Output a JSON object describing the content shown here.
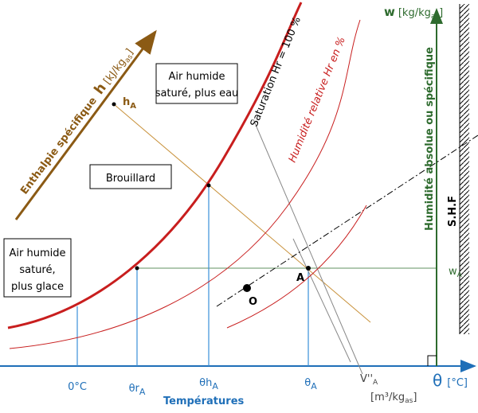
{
  "axes": {
    "w_label": {
      "main": "w",
      "unit": "[kg/kg",
      "sub": "as",
      "end": "]"
    },
    "w_axis_title": "Humidité absolue ou spécifique",
    "shf": "S.H.F",
    "wA": {
      "main": "w",
      "sub": "A"
    },
    "theta_label": {
      "main": "θ",
      "unit": "[°C]"
    },
    "x_title": "Températures",
    "x_ticks": [
      {
        "main": "0°C",
        "sub": ""
      },
      {
        "main": "θr",
        "sub": "A"
      },
      {
        "main": "θh",
        "sub": "A"
      },
      {
        "main": "θ",
        "sub": "A"
      }
    ],
    "volume": {
      "main": "V''",
      "sub": "A"
    },
    "volume_unit": {
      "main": "[m³/kg",
      "sub": "as",
      "end": "]"
    },
    "enthalpy": {
      "title": "Enthalpie spécifique",
      "symbol": "h",
      "unit": "[kJ/kg",
      "sub": "as",
      "end": "]"
    },
    "hA": {
      "main": "h",
      "sub": "A"
    }
  },
  "points": {
    "A": "A",
    "O": "O"
  },
  "regions": {
    "saturated_water": [
      "Air humide",
      "saturé, plus eau"
    ],
    "fog": "Brouillard",
    "saturated_ice": [
      "Air humide",
      "saturé,",
      "plus glace"
    ]
  },
  "curves": {
    "saturation": "Saturation Hr = 100 %",
    "relative": "Humidité relative Hr en %"
  }
}
